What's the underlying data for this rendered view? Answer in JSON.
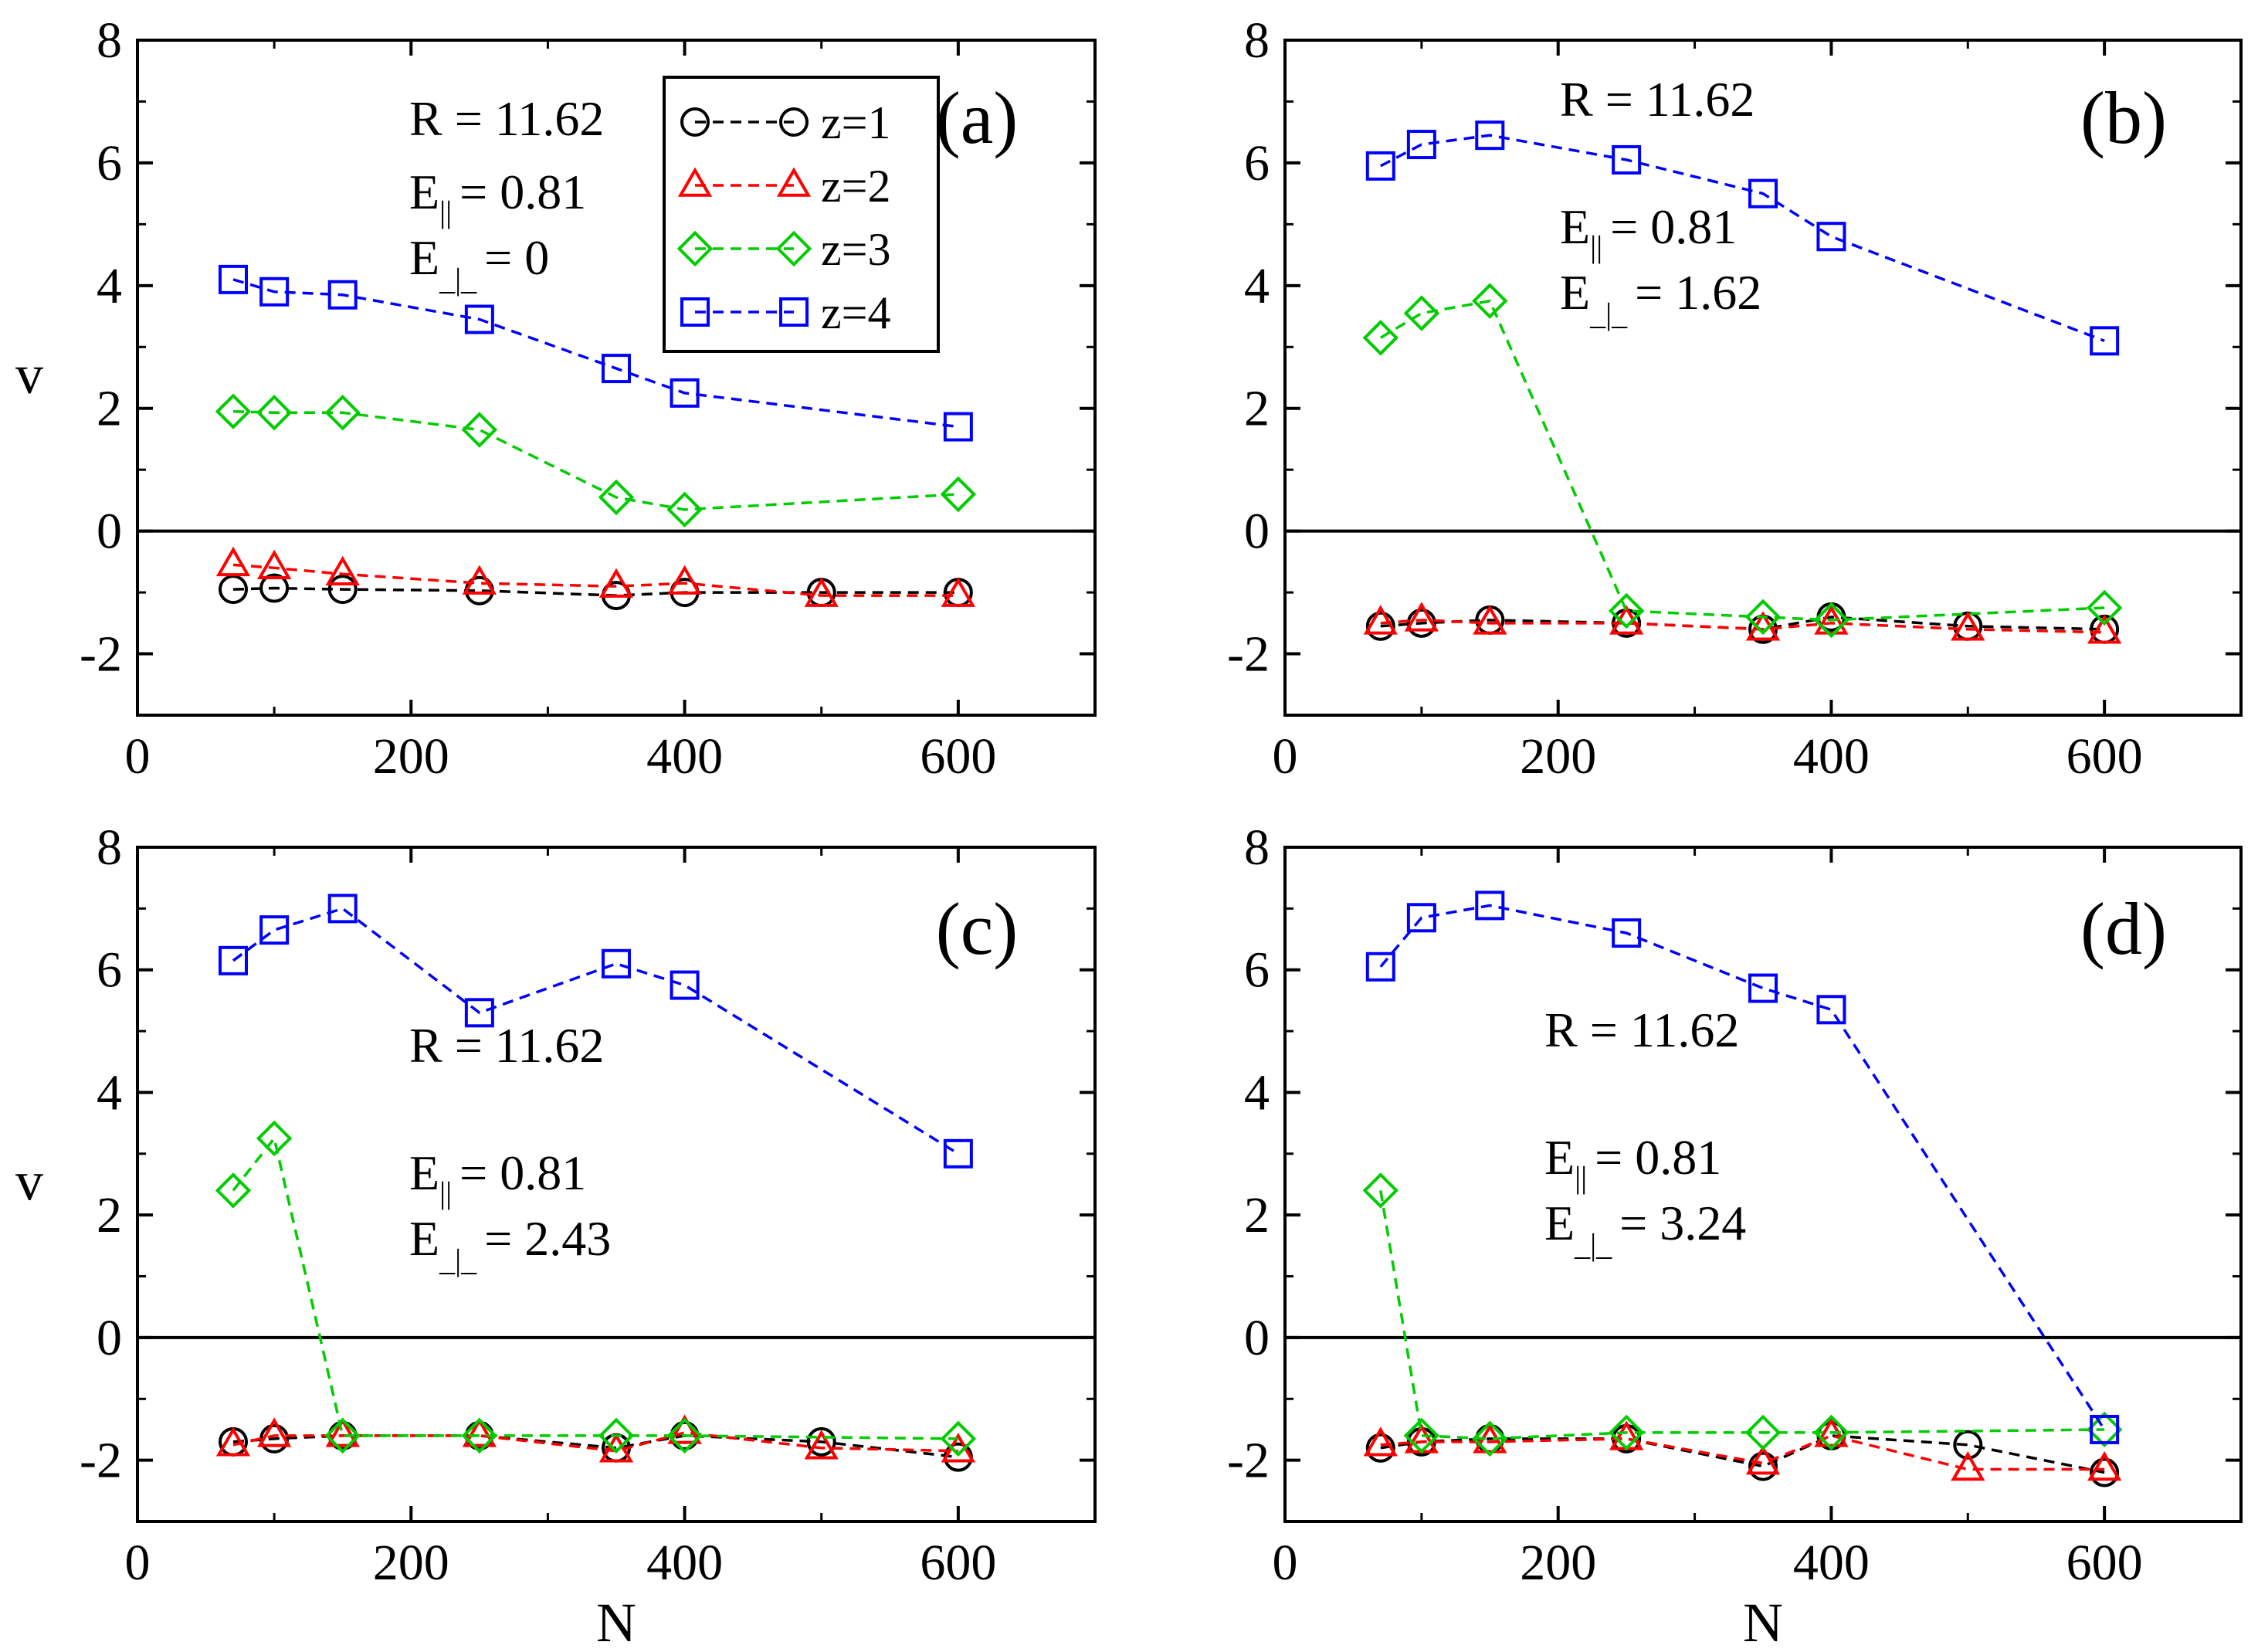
{
  "chart_data": [
    {
      "panel": "(a)",
      "type": "line",
      "xlabel": "",
      "ylabel": "v",
      "xlim": [
        0,
        700
      ],
      "ylim": [
        -3,
        8
      ],
      "xticks": [
        0,
        200,
        400,
        600
      ],
      "yticks": [
        -2,
        0,
        2,
        4,
        6,
        8
      ],
      "annotation": {
        "R": "R = 11.62",
        "E_par_sym": "E",
        "E_par_sub": "||",
        "E_par_val": "= 0.81",
        "E_perp_sym": "E",
        "E_perp_sub": "_|_",
        "E_perp_val": "= 0"
      },
      "x": [
        70,
        100,
        150,
        250,
        350,
        400,
        500,
        600
      ],
      "series": [
        {
          "name": "z=1",
          "color": "#000000",
          "marker": "circle",
          "x": [
            70,
            100,
            150,
            250,
            350,
            400,
            500,
            600
          ],
          "values": [
            -0.95,
            -0.93,
            -0.95,
            -0.97,
            -1.05,
            -1.0,
            -1.0,
            -1.0
          ]
        },
        {
          "name": "z=2",
          "color": "#ff0000",
          "marker": "triangle",
          "x": [
            70,
            100,
            150,
            250,
            350,
            400,
            500,
            600
          ],
          "values": [
            -0.55,
            -0.6,
            -0.7,
            -0.85,
            -0.9,
            -0.85,
            -1.05,
            -1.05
          ]
        },
        {
          "name": "z=3",
          "color": "#00cc00",
          "marker": "diamond",
          "x": [
            70,
            100,
            150,
            250,
            350,
            400,
            600
          ],
          "values": [
            1.95,
            1.93,
            1.93,
            1.65,
            0.55,
            0.35,
            0.6
          ]
        },
        {
          "name": "z=4",
          "color": "#0000ff",
          "marker": "square",
          "x": [
            70,
            100,
            150,
            250,
            350,
            400,
            600
          ],
          "values": [
            4.1,
            3.9,
            3.85,
            3.45,
            2.65,
            2.25,
            1.7
          ]
        }
      ],
      "legend": {
        "position": "top-center",
        "entries": [
          "z=1",
          "z=2",
          "z=3",
          "z=4"
        ]
      }
    },
    {
      "panel": "(b)",
      "type": "line",
      "xlabel": "",
      "ylabel": "",
      "xlim": [
        0,
        700
      ],
      "ylim": [
        -3,
        8
      ],
      "xticks": [
        0,
        200,
        400,
        600
      ],
      "yticks": [
        -2,
        0,
        2,
        4,
        6,
        8
      ],
      "annotation": {
        "R": "R = 11.62",
        "E_par_sym": "E",
        "E_par_sub": "||",
        "E_par_val": "= 0.81",
        "E_perp_sym": "E",
        "E_perp_sub": "_|_",
        "E_perp_val": "= 1.62"
      },
      "x": [
        70,
        100,
        150,
        250,
        350,
        400,
        500,
        600
      ],
      "series": [
        {
          "name": "z=1",
          "color": "#000000",
          "marker": "circle",
          "x": [
            70,
            100,
            150,
            250,
            350,
            400,
            500,
            600
          ],
          "values": [
            -1.55,
            -1.5,
            -1.45,
            -1.5,
            -1.6,
            -1.4,
            -1.55,
            -1.6
          ]
        },
        {
          "name": "z=2",
          "color": "#ff0000",
          "marker": "triangle",
          "x": [
            70,
            100,
            150,
            250,
            350,
            400,
            500,
            600
          ],
          "values": [
            -1.5,
            -1.45,
            -1.5,
            -1.5,
            -1.6,
            -1.5,
            -1.6,
            -1.65
          ]
        },
        {
          "name": "z=3",
          "color": "#00cc00",
          "marker": "diamond",
          "x": [
            70,
            100,
            150,
            250,
            350,
            400,
            600
          ],
          "values": [
            3.15,
            3.55,
            3.75,
            -1.3,
            -1.4,
            -1.45,
            -1.25
          ]
        },
        {
          "name": "z=4",
          "color": "#0000ff",
          "marker": "square",
          "x": [
            70,
            100,
            150,
            250,
            350,
            400,
            600
          ],
          "values": [
            5.95,
            6.3,
            6.45,
            6.05,
            5.5,
            4.8,
            3.1
          ]
        }
      ]
    },
    {
      "panel": "(c)",
      "type": "line",
      "xlabel": "N",
      "ylabel": "v",
      "xlim": [
        0,
        700
      ],
      "ylim": [
        -3,
        8
      ],
      "xticks": [
        0,
        200,
        400,
        600
      ],
      "yticks": [
        -2,
        0,
        2,
        4,
        6,
        8
      ],
      "annotation": {
        "R": "R = 11.62",
        "E_par_sym": "E",
        "E_par_sub": "||",
        "E_par_val": "= 0.81",
        "E_perp_sym": "E",
        "E_perp_sub": "_|_",
        "E_perp_val": "= 2.43"
      },
      "x": [
        70,
        100,
        150,
        250,
        350,
        400,
        500,
        600
      ],
      "series": [
        {
          "name": "z=1",
          "color": "#000000",
          "marker": "circle",
          "x": [
            70,
            100,
            150,
            250,
            350,
            400,
            500,
            600
          ],
          "values": [
            -1.7,
            -1.65,
            -1.6,
            -1.6,
            -1.8,
            -1.6,
            -1.7,
            -1.95
          ]
        },
        {
          "name": "z=2",
          "color": "#ff0000",
          "marker": "triangle",
          "x": [
            70,
            100,
            150,
            250,
            350,
            400,
            500,
            600
          ],
          "values": [
            -1.75,
            -1.6,
            -1.6,
            -1.6,
            -1.85,
            -1.55,
            -1.8,
            -1.85
          ]
        },
        {
          "name": "z=3",
          "color": "#00cc00",
          "marker": "diamond",
          "x": [
            70,
            100,
            150,
            250,
            350,
            400,
            600
          ],
          "values": [
            2.4,
            3.25,
            -1.6,
            -1.6,
            -1.6,
            -1.6,
            -1.65
          ]
        },
        {
          "name": "z=4",
          "color": "#0000ff",
          "marker": "square",
          "x": [
            70,
            100,
            150,
            250,
            350,
            400,
            600
          ],
          "values": [
            6.15,
            6.65,
            7.0,
            5.3,
            6.1,
            5.75,
            3.0
          ]
        }
      ]
    },
    {
      "panel": "(d)",
      "type": "line",
      "xlabel": "N",
      "ylabel": "",
      "xlim": [
        0,
        700
      ],
      "ylim": [
        -3,
        8
      ],
      "xticks": [
        0,
        200,
        400,
        600
      ],
      "yticks": [
        -2,
        0,
        2,
        4,
        6,
        8
      ],
      "annotation": {
        "R": "R = 11.62",
        "E_par_sym": "E",
        "E_par_sub": "||",
        "E_par_val": "= 0.81",
        "E_perp_sym": "E",
        "E_perp_sub": "_|_",
        "E_perp_val": "= 3.24"
      },
      "x": [
        70,
        100,
        150,
        250,
        350,
        400,
        500,
        600
      ],
      "series": [
        {
          "name": "z=1",
          "color": "#000000",
          "marker": "circle",
          "x": [
            70,
            100,
            150,
            250,
            350,
            400,
            500,
            600
          ],
          "values": [
            -1.8,
            -1.7,
            -1.65,
            -1.65,
            -2.1,
            -1.6,
            -1.75,
            -2.2
          ]
        },
        {
          "name": "z=2",
          "color": "#ff0000",
          "marker": "triangle",
          "x": [
            70,
            100,
            150,
            250,
            350,
            400,
            500,
            600
          ],
          "values": [
            -1.75,
            -1.7,
            -1.7,
            -1.65,
            -2.05,
            -1.6,
            -2.15,
            -2.15
          ]
        },
        {
          "name": "z=3",
          "color": "#00cc00",
          "marker": "diamond",
          "x": [
            70,
            100,
            150,
            250,
            350,
            400,
            600
          ],
          "values": [
            2.4,
            -1.6,
            -1.65,
            -1.55,
            -1.55,
            -1.55,
            -1.5
          ]
        },
        {
          "name": "z=4",
          "color": "#0000ff",
          "marker": "square",
          "x": [
            70,
            100,
            150,
            250,
            350,
            400,
            600
          ],
          "values": [
            6.05,
            6.85,
            7.05,
            6.6,
            5.7,
            5.35,
            -1.5
          ]
        }
      ]
    }
  ]
}
